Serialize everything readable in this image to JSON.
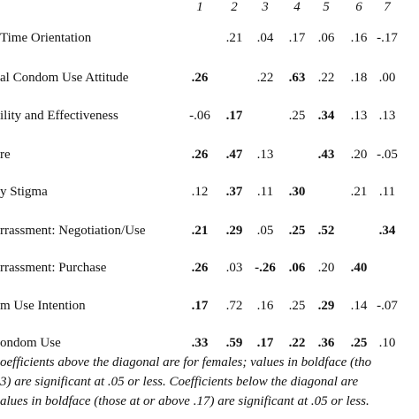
{
  "table": {
    "column_headers": [
      "1",
      "2",
      "3",
      "4",
      "5",
      "6",
      "7"
    ],
    "rows": [
      {
        "label": " Time Orientation",
        "cells": [
          {
            "text": "",
            "bold": false
          },
          {
            "text": ".21",
            "bold": false
          },
          {
            "text": ".04",
            "bold": false
          },
          {
            "text": ".17",
            "bold": false
          },
          {
            "text": ".06",
            "bold": false
          },
          {
            "text": ".16",
            "bold": false
          },
          {
            "text": "-.17",
            "bold": false
          }
        ]
      },
      {
        "label": "al Condom Use Attitude",
        "cells": [
          {
            "text": ".26",
            "bold": true
          },
          {
            "text": "",
            "bold": false
          },
          {
            "text": ".22",
            "bold": false
          },
          {
            "text": ".63",
            "bold": true
          },
          {
            "text": ".22",
            "bold": false
          },
          {
            "text": ".18",
            "bold": false
          },
          {
            "text": ".00",
            "bold": false
          }
        ]
      },
      {
        "label": "ility and Effectiveness",
        "cells": [
          {
            "text": "-.06",
            "bold": false
          },
          {
            "text": ".17",
            "bold": true
          },
          {
            "text": "",
            "bold": false
          },
          {
            "text": ".25",
            "bold": false
          },
          {
            "text": ".34",
            "bold": true
          },
          {
            "text": ".13",
            "bold": false
          },
          {
            "text": ".13",
            "bold": false
          }
        ]
      },
      {
        "label": "re",
        "cells": [
          {
            "text": ".26",
            "bold": true
          },
          {
            "text": ".47",
            "bold": true
          },
          {
            "text": ".13",
            "bold": false
          },
          {
            "text": "",
            "bold": false
          },
          {
            "text": ".43",
            "bold": true
          },
          {
            "text": ".20",
            "bold": false
          },
          {
            "text": "-.05",
            "bold": false
          }
        ]
      },
      {
        "label": "y Stigma",
        "cells": [
          {
            "text": ".12",
            "bold": false
          },
          {
            "text": ".37",
            "bold": true
          },
          {
            "text": ".11",
            "bold": false
          },
          {
            "text": ".30",
            "bold": true
          },
          {
            "text": "",
            "bold": false
          },
          {
            "text": ".21",
            "bold": false
          },
          {
            "text": ".11",
            "bold": false
          }
        ]
      },
      {
        "label": "rrassment: Negotiation/Use",
        "cells": [
          {
            "text": ".21",
            "bold": true
          },
          {
            "text": ".29",
            "bold": true
          },
          {
            "text": ".05",
            "bold": false
          },
          {
            "text": ".25",
            "bold": true
          },
          {
            "text": ".52",
            "bold": true
          },
          {
            "text": "",
            "bold": false
          },
          {
            "text": ".34",
            "bold": true
          }
        ]
      },
      {
        "label": "rrassment: Purchase",
        "cells": [
          {
            "text": ".26",
            "bold": true
          },
          {
            "text": ".03",
            "bold": false
          },
          {
            "text": "-.26",
            "bold": true
          },
          {
            "text": ".06",
            "bold": true
          },
          {
            "text": ".20",
            "bold": false
          },
          {
            "text": ".40",
            "bold": true
          },
          {
            "text": "",
            "bold": false
          }
        ]
      },
      {
        "label": "m Use Intention",
        "cells": [
          {
            "text": ".17",
            "bold": true
          },
          {
            "text": ".72",
            "bold": false
          },
          {
            "text": ".16",
            "bold": false
          },
          {
            "text": ".25",
            "bold": false
          },
          {
            "text": ".29",
            "bold": true
          },
          {
            "text": ".14",
            "bold": false
          },
          {
            "text": "-.07",
            "bold": false
          }
        ]
      },
      {
        "label": "ondom Use",
        "cells": [
          {
            "text": ".33",
            "bold": true
          },
          {
            "text": ".59",
            "bold": true
          },
          {
            "text": ".17",
            "bold": true
          },
          {
            "text": ".22",
            "bold": true
          },
          {
            "text": ".36",
            "bold": true
          },
          {
            "text": ".25",
            "bold": true
          },
          {
            "text": ".10",
            "bold": false
          }
        ]
      }
    ]
  },
  "note": {
    "line1": "oefficients above the diagonal are for females; values in boldface (tho",
    "line2": "3) are significant at .05 or less.  Coefficients below the diagonal are",
    "line3": "alues in boldface (those at or above .17) are significant at .05 or less."
  }
}
